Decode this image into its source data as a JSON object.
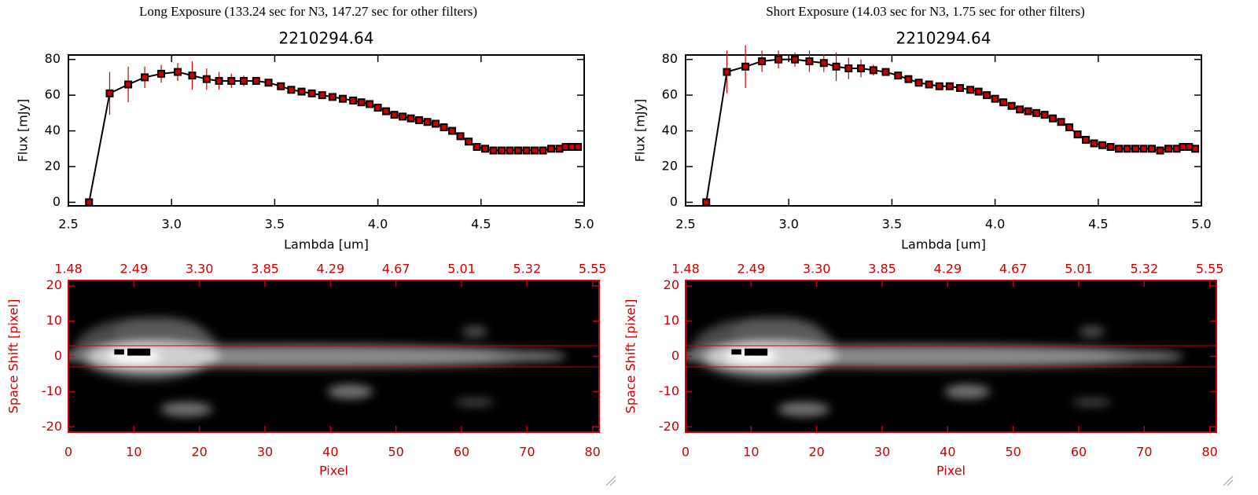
{
  "chart_data": [
    {
      "type": "line",
      "title": "Long Exposure (133.24 sec for N3, 147.27 sec for other filters)",
      "subtitle": "2210294.64",
      "x_label": "Lambda [um]",
      "y_label": "Flux [mJy]",
      "color": "#000000",
      "error_color": "#cc0000",
      "xlim": [
        2.5,
        5.0
      ],
      "ylim": [
        -2,
        82.5
      ],
      "xticks": [
        2.5,
        {
          "value": 3,
          "label": "3.0"
        },
        3.5,
        {
          "value": 4,
          "label": "4.0"
        },
        4.5,
        {
          "value": 5,
          "label": "5.0"
        }
      ],
      "yticks": [
        0,
        20,
        40,
        60,
        80
      ],
      "x": [
        2.6,
        2.7,
        2.79,
        2.87,
        2.95,
        3.03,
        3.1,
        3.17,
        3.23,
        3.29,
        3.35,
        3.41,
        3.47,
        3.53,
        3.58,
        3.63,
        3.68,
        3.73,
        3.78,
        3.83,
        3.88,
        3.92,
        3.96,
        4.0,
        4.04,
        4.08,
        4.12,
        4.16,
        4.2,
        4.24,
        4.28,
        4.32,
        4.36,
        4.4,
        4.44,
        4.48,
        4.52,
        4.56,
        4.6,
        4.64,
        4.68,
        4.72,
        4.76,
        4.8,
        4.84,
        4.88,
        4.91,
        4.94,
        4.97
      ],
      "values": [
        0,
        61,
        66,
        70,
        72,
        73,
        71,
        69,
        68,
        68,
        68,
        68,
        67,
        65,
        63,
        62,
        61,
        60,
        59,
        58,
        57,
        56,
        55,
        53,
        51,
        49,
        48,
        47,
        46,
        45,
        44,
        42,
        40,
        37,
        34,
        31,
        30,
        29,
        29,
        29,
        29,
        29,
        29,
        29,
        30,
        30,
        31,
        31,
        31
      ],
      "errors": [
        0,
        12,
        10,
        6,
        5,
        5,
        8,
        6,
        5,
        4,
        3,
        2,
        2,
        1,
        1,
        1,
        1,
        1,
        1,
        1,
        1,
        1,
        1,
        1,
        1,
        1,
        1,
        1,
        1,
        1,
        1,
        1,
        1,
        1,
        1,
        1,
        1,
        1,
        1,
        1,
        1,
        1,
        1,
        1,
        1,
        2,
        2,
        2,
        2
      ]
    },
    {
      "type": "image",
      "x_label": "Pixel",
      "y_label": "Space Shift [pixel]",
      "axis_color": "#cc0000",
      "xlim": [
        0,
        81
      ],
      "ylim": [
        -21.5,
        21.5
      ],
      "xticks": [
        0,
        10,
        20,
        30,
        40,
        50,
        60,
        70,
        80
      ],
      "yticks": [
        -20,
        -10,
        0,
        10,
        20
      ],
      "x2ticks": [
        {
          "value": 0,
          "label": "1.48"
        },
        {
          "value": 10,
          "label": "2.49"
        },
        {
          "value": 20,
          "label": "3.30"
        },
        {
          "value": 30,
          "label": "3.85"
        },
        {
          "value": 40,
          "label": "4.29"
        },
        {
          "value": 50,
          "label": "4.67"
        },
        {
          "value": 60,
          "label": "5.01"
        },
        {
          "value": 70,
          "label": "5.32"
        },
        {
          "value": 80,
          "label": "5.55"
        }
      ],
      "hlines": [
        3,
        -3
      ]
    },
    {
      "type": "line",
      "title": "Short Exposure (14.03 sec for N3, 1.75 sec for other filters)",
      "subtitle": "2210294.64",
      "x_label": "Lambda [um]",
      "y_label": "Flux [mJy]",
      "color": "#000000",
      "error_color": "#cc0000",
      "xlim": [
        2.5,
        5.0
      ],
      "ylim": [
        -2,
        82.5
      ],
      "xticks": [
        2.5,
        {
          "value": 3,
          "label": "3.0"
        },
        3.5,
        {
          "value": 4,
          "label": "4.0"
        },
        4.5,
        {
          "value": 5,
          "label": "5.0"
        }
      ],
      "yticks": [
        0,
        20,
        40,
        60,
        80
      ],
      "x": [
        2.6,
        2.7,
        2.79,
        2.87,
        2.95,
        3.03,
        3.1,
        3.17,
        3.23,
        3.29,
        3.35,
        3.41,
        3.47,
        3.53,
        3.58,
        3.63,
        3.68,
        3.73,
        3.78,
        3.83,
        3.88,
        3.92,
        3.96,
        4.0,
        4.04,
        4.08,
        4.12,
        4.16,
        4.2,
        4.24,
        4.28,
        4.32,
        4.36,
        4.4,
        4.44,
        4.48,
        4.52,
        4.56,
        4.6,
        4.64,
        4.68,
        4.72,
        4.76,
        4.8,
        4.84,
        4.88,
        4.91,
        4.94,
        4.97
      ],
      "values": [
        0,
        73,
        76,
        79,
        80,
        80,
        79,
        78,
        76,
        75,
        75,
        74,
        73,
        71,
        69,
        67,
        66,
        65,
        65,
        64,
        63,
        62,
        60,
        58,
        56,
        54,
        52,
        51,
        50,
        49,
        47,
        45,
        42,
        38,
        35,
        33,
        32,
        31,
        30,
        30,
        30,
        30,
        30,
        29,
        30,
        30,
        31,
        31,
        30
      ],
      "errors": [
        0,
        12,
        12,
        6,
        5,
        4,
        6,
        5,
        8,
        6,
        5,
        3,
        2,
        1,
        1,
        1,
        1,
        1,
        1,
        1,
        1,
        1,
        1,
        1,
        1,
        1,
        1,
        1,
        1,
        1,
        1,
        1,
        1,
        1,
        1,
        1,
        1,
        1,
        1,
        1,
        1,
        1,
        1,
        1,
        1,
        2,
        2,
        2,
        2
      ]
    },
    {
      "type": "image",
      "x_label": "Pixel",
      "y_label": "Space Shift [pixel]",
      "axis_color": "#cc0000",
      "xlim": [
        0,
        81
      ],
      "ylim": [
        -21.5,
        21.5
      ],
      "xticks": [
        0,
        10,
        20,
        30,
        40,
        50,
        60,
        70,
        80
      ],
      "yticks": [
        -20,
        -10,
        0,
        10,
        20
      ],
      "x2ticks": [
        {
          "value": 0,
          "label": "1.48"
        },
        {
          "value": 10,
          "label": "2.49"
        },
        {
          "value": 20,
          "label": "3.30"
        },
        {
          "value": 30,
          "label": "3.85"
        },
        {
          "value": 40,
          "label": "4.29"
        },
        {
          "value": 50,
          "label": "4.67"
        },
        {
          "value": 60,
          "label": "5.01"
        },
        {
          "value": 70,
          "label": "5.32"
        },
        {
          "value": 80,
          "label": "5.55"
        }
      ],
      "hlines": [
        3,
        -3
      ]
    }
  ]
}
